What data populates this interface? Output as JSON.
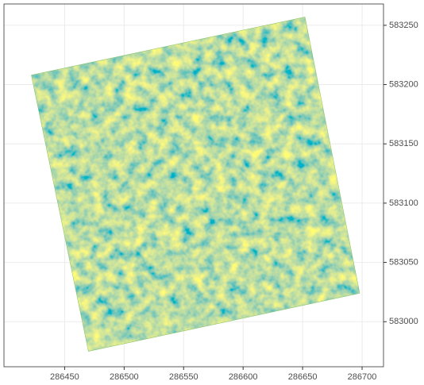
{
  "chart_data": {
    "type": "raster",
    "x": [
      286422,
      286652,
      286698,
      286470
    ],
    "y": [
      583208,
      583257,
      583024,
      582975
    ],
    "xlim": [
      286399,
      286718
    ],
    "ylim": [
      582962,
      583268
    ],
    "xticks": [
      286450,
      286500,
      286550,
      286600,
      286650,
      286700
    ],
    "yticks": [
      583000,
      583050,
      583100,
      583150,
      583200,
      583250
    ],
    "grid": true
  }
}
